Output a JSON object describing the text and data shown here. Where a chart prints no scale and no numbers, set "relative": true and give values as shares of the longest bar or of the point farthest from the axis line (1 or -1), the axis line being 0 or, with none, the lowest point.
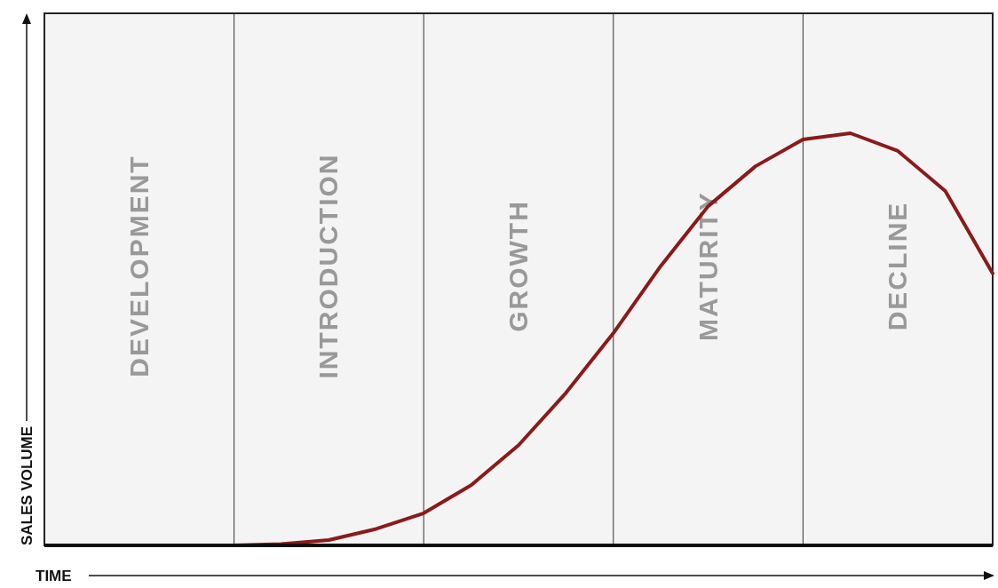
{
  "chart_data": {
    "type": "line",
    "xlabel": "TIME",
    "ylabel": "SALES VOLUME",
    "relative": true,
    "grid": "x",
    "categories": [
      null,
      null,
      null,
      null,
      null,
      null,
      null,
      null,
      null,
      null,
      null,
      null,
      null,
      null,
      null,
      null,
      null,
      null,
      null,
      null,
      null
    ],
    "series": [
      {
        "color": "#8b1a1a",
        "values": [
          null,
          null,
          null,
          null,
          0,
          0.003,
          0.013,
          0.04,
          0.078,
          0.146,
          0.243,
          0.37,
          0.515,
          0.678,
          0.823,
          0.92,
          0.985,
          1,
          0.957,
          0.86,
          0.66
        ]
      }
    ],
    "annotations": [
      "DEVELOPMENT",
      "INTRODUCTION",
      "GROWTH",
      "MATURITY",
      "DECLINE"
    ]
  }
}
